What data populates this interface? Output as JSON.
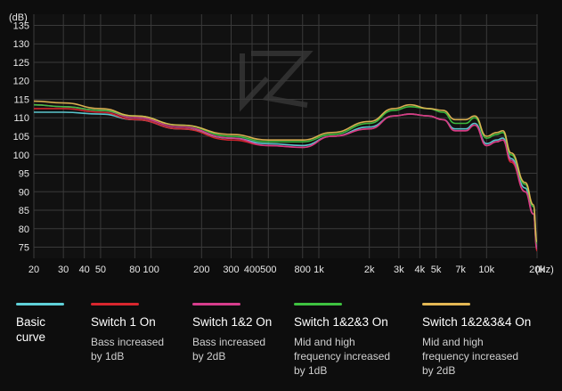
{
  "chart_data": {
    "type": "line",
    "title": "",
    "ylabel": "(dB)",
    "xlabel": "(Hz)",
    "x_scale": "log",
    "xlim": [
      20,
      20000
    ],
    "ylim": [
      72,
      138
    ],
    "grid": true,
    "y_ticks": [
      75,
      80,
      85,
      90,
      95,
      100,
      105,
      110,
      115,
      120,
      125,
      130,
      135
    ],
    "x_ticks": [
      {
        "value": 20,
        "label": "20"
      },
      {
        "value": 30,
        "label": "30"
      },
      {
        "value": 40,
        "label": "40"
      },
      {
        "value": 50,
        "label": "50"
      },
      {
        "value": 80,
        "label": "80"
      },
      {
        "value": 100,
        "label": "100"
      },
      {
        "value": 200,
        "label": "200"
      },
      {
        "value": 300,
        "label": "300"
      },
      {
        "value": 400,
        "label": "400"
      },
      {
        "value": 500,
        "label": "500"
      },
      {
        "value": 800,
        "label": "800"
      },
      {
        "value": 1000,
        "label": "1k"
      },
      {
        "value": 2000,
        "label": "2k"
      },
      {
        "value": 3000,
        "label": "3k"
      },
      {
        "value": 4000,
        "label": "4k"
      },
      {
        "value": 5000,
        "label": "5k"
      },
      {
        "value": 7000,
        "label": "7k"
      },
      {
        "value": 10000,
        "label": "10k"
      },
      {
        "value": 20000,
        "label": "20k"
      }
    ],
    "x": [
      20,
      30,
      50,
      80,
      150,
      300,
      500,
      800,
      1200,
      2000,
      2800,
      3500,
      4500,
      5500,
      6500,
      7500,
      8500,
      10000,
      11500,
      12500,
      14000,
      17000,
      19000,
      20000
    ],
    "series": [
      {
        "name": "Basic curve",
        "color": "#5fd0d8",
        "values": [
          111.5,
          111.5,
          111,
          109.5,
          107,
          104.5,
          103,
          102.5,
          105,
          107.5,
          110.5,
          111,
          110.5,
          109.5,
          107,
          107,
          108.5,
          103,
          104,
          104.5,
          99,
          91,
          84,
          75
        ]
      },
      {
        "name": "Switch 1 On",
        "color": "#d8262e",
        "values": [
          112.5,
          112.5,
          111.5,
          109.5,
          107,
          104,
          102.5,
          102,
          105,
          107,
          110.5,
          111,
          110.5,
          109.5,
          106.5,
          106.5,
          108,
          102.5,
          103.5,
          104,
          98,
          90,
          84,
          74
        ]
      },
      {
        "name": "Switch 1&2 On",
        "color": "#d63d8c",
        "values": [
          113.5,
          113,
          112,
          110,
          107.5,
          104.5,
          102.5,
          102,
          105,
          107,
          110.5,
          111,
          110.5,
          109.5,
          106.5,
          106.5,
          108,
          102.5,
          103.5,
          104,
          98.5,
          90,
          84,
          74.5
        ]
      },
      {
        "name": "Switch 1&2&3 On",
        "color": "#3ec240",
        "values": [
          113.5,
          113,
          112,
          110.5,
          108,
          105,
          103.5,
          103.5,
          105.5,
          108.5,
          112,
          113,
          112.5,
          111.5,
          108.5,
          108.5,
          110,
          104.5,
          105.5,
          106,
          100,
          92,
          86,
          76
        ]
      },
      {
        "name": "Switch 1&2&3&4 On",
        "color": "#e3b754",
        "values": [
          114.5,
          114,
          112.5,
          110.5,
          108,
          105.5,
          104,
          104,
          106,
          109,
          112.5,
          113.5,
          112.5,
          112,
          109.5,
          109.5,
          110.5,
          105,
          106,
          106.5,
          100.5,
          92.5,
          86.5,
          76.5
        ]
      }
    ]
  },
  "legend": [
    {
      "name": "Basic\ncurve",
      "desc": ""
    },
    {
      "name": "Switch 1 On",
      "desc": "Bass increased\nby 1dB"
    },
    {
      "name": "Switch 1&2 On",
      "desc": "Bass increased\nby 2dB"
    },
    {
      "name": "Switch 1&2&3 On",
      "desc": "Mid and high\nfrequency increased\nby 1dB"
    },
    {
      "name": "Switch 1&2&3&4 On",
      "desc": "Mid and high\nfrequency increased\nby 2dB"
    }
  ]
}
